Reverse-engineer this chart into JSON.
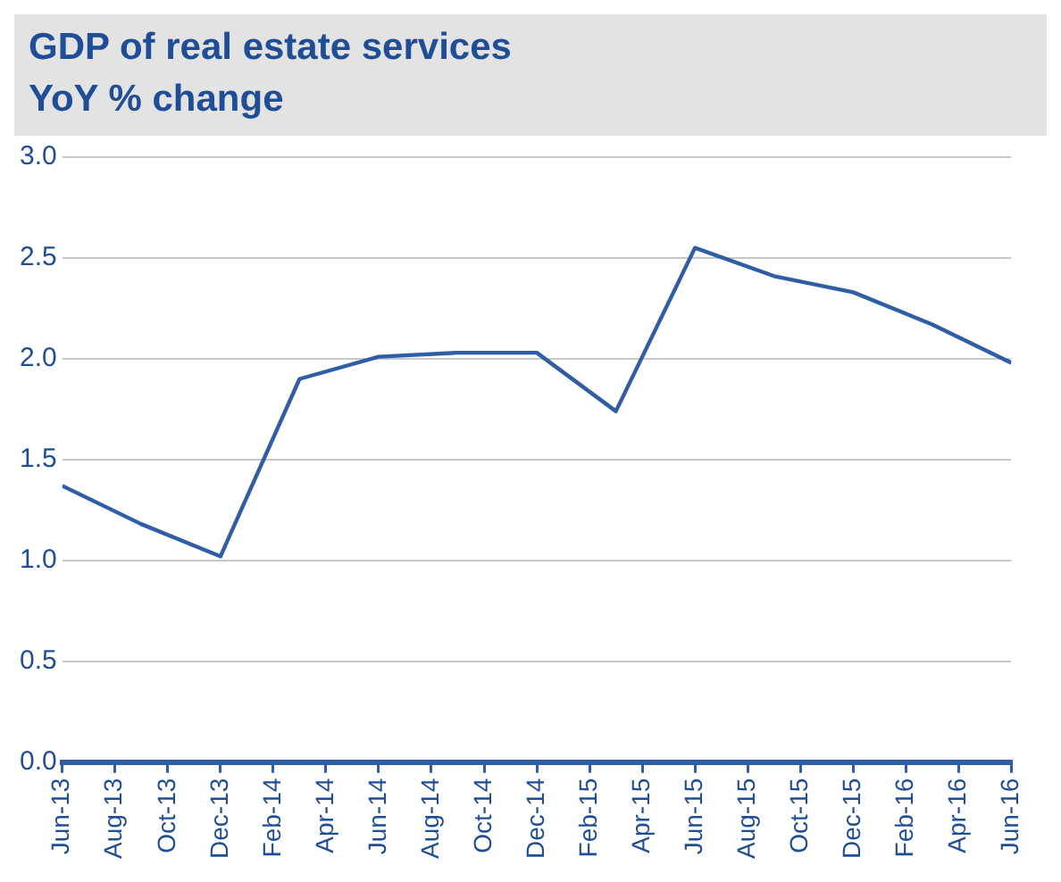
{
  "chart_data": {
    "type": "line",
    "title": "GDP of real estate services",
    "subtitle": "YoY % change",
    "x": [
      "2013-06",
      "2013-09",
      "2013-12",
      "2014-03",
      "2014-06",
      "2014-09",
      "2014-12",
      "2015-03",
      "2015-06",
      "2015-09",
      "2015-12",
      "2016-03",
      "2016-06"
    ],
    "series": [
      {
        "color": "#2f5da6",
        "values": [
          1.37,
          1.18,
          1.02,
          1.9,
          2.01,
          2.03,
          2.03,
          1.74,
          2.55,
          2.41,
          2.33,
          2.17,
          1.98
        ]
      }
    ],
    "xlim": [
      "2013-06",
      "2016-06"
    ],
    "xticks": [
      {
        "value": "2013-06",
        "label": "Jun-13"
      },
      {
        "value": "2013-08",
        "label": "Aug-13"
      },
      {
        "value": "2013-10",
        "label": "Oct-13"
      },
      {
        "value": "2013-12",
        "label": "Dec-13"
      },
      {
        "value": "2014-02",
        "label": "Feb-14"
      },
      {
        "value": "2014-04",
        "label": "Apr-14"
      },
      {
        "value": "2014-06",
        "label": "Jun-14"
      },
      {
        "value": "2014-08",
        "label": "Aug-14"
      },
      {
        "value": "2014-10",
        "label": "Oct-14"
      },
      {
        "value": "2014-12",
        "label": "Dec-14"
      },
      {
        "value": "2015-02",
        "label": "Feb-15"
      },
      {
        "value": "2015-04",
        "label": "Apr-15"
      },
      {
        "value": "2015-06",
        "label": "Jun-15"
      },
      {
        "value": "2015-08",
        "label": "Aug-15"
      },
      {
        "value": "2015-10",
        "label": "Oct-15"
      },
      {
        "value": "2015-12",
        "label": "Dec-15"
      },
      {
        "value": "2016-02",
        "label": "Feb-16"
      },
      {
        "value": "2016-04",
        "label": "Apr-16"
      },
      {
        "value": "2016-06",
        "label": "Jun-16"
      }
    ],
    "ylim": [
      0,
      3
    ],
    "yticks": [
      {
        "value": 0,
        "label": "0.0"
      },
      {
        "value": 0.5,
        "label": "0.5"
      },
      {
        "value": 1,
        "label": "1.0"
      },
      {
        "value": 1.5,
        "label": "1.5"
      },
      {
        "value": 2,
        "label": "2.0"
      },
      {
        "value": 2.5,
        "label": "2.5"
      },
      {
        "value": 3,
        "label": "3.0"
      }
    ],
    "grid": "y",
    "legend": false,
    "marker": "none",
    "line_style": "solid"
  }
}
